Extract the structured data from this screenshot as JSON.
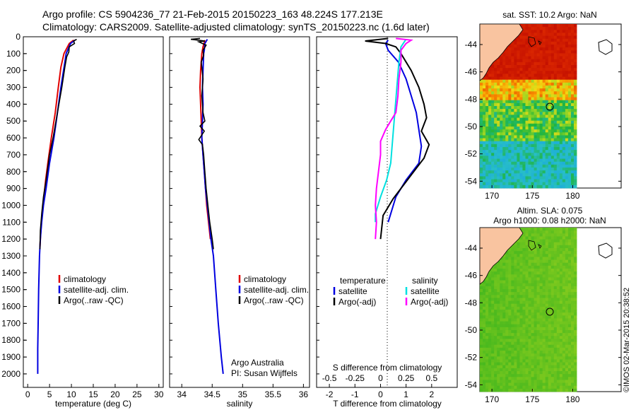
{
  "header": {
    "line1": "Argo profile: CS 5904236_77 21-Feb-2015 20150223_163 48.224S 177.213E",
    "line2": "Climatology: CARS2009. Satellite-adjusted climatology: synTS_20150223.nc (1.6d later)"
  },
  "colors": {
    "climatology": "#e00000",
    "satellite": "#0000e0",
    "argo": "#000000",
    "satellite_salinity": "#00e0e0",
    "argo_salinity": "#ff00ff"
  },
  "depth_axis": {
    "ticks": [
      0,
      100,
      200,
      300,
      400,
      500,
      600,
      700,
      800,
      900,
      1000,
      1100,
      1200,
      1300,
      1400,
      1500,
      1600,
      1700,
      1800,
      1900,
      2000
    ],
    "range": [
      0,
      2080
    ]
  },
  "credit": {
    "line1": "Argo Australia",
    "line2": "PI: Susan Wijffels"
  },
  "watermark": "©IMOS 02-Mar-2015 20:38:52",
  "chart_data": [
    {
      "type": "line",
      "xlabel": "temperature (deg C)",
      "ylim": [
        2080,
        0
      ],
      "xlim": [
        -1,
        31
      ],
      "xticks": [
        0,
        5,
        10,
        15,
        20,
        25,
        30
      ],
      "legend": {
        "position": "lower-right",
        "entries": [
          "climatology",
          "satellite-adj. clim.",
          "Argo(..raw -QC)"
        ]
      },
      "series": [
        {
          "name": "climatology",
          "points": [
            [
              10.5,
              20
            ],
            [
              9.5,
              40
            ],
            [
              8.3,
              100
            ],
            [
              7.6,
              180
            ],
            [
              7.0,
              300
            ],
            [
              6.3,
              450
            ],
            [
              5.4,
              600
            ],
            [
              4.6,
              750
            ],
            [
              4.1,
              850
            ],
            [
              3.7,
              950
            ],
            [
              3.3,
              1050
            ],
            [
              3.0,
              1150
            ],
            [
              2.8,
              1250
            ]
          ]
        },
        {
          "name": "satellite-adj. clim.",
          "points": [
            [
              10.8,
              20
            ],
            [
              9.8,
              40
            ],
            [
              8.8,
              100
            ],
            [
              8.5,
              150
            ],
            [
              7.6,
              300
            ],
            [
              6.8,
              450
            ],
            [
              6.0,
              600
            ],
            [
              5.0,
              750
            ],
            [
              4.2,
              900
            ],
            [
              3.6,
              1000
            ],
            [
              3.2,
              1100
            ],
            [
              2.9,
              1200
            ],
            [
              2.7,
              1300
            ],
            [
              2.5,
              1500
            ],
            [
              2.4,
              1700
            ],
            [
              2.3,
              1850
            ],
            [
              2.3,
              2000
            ]
          ]
        },
        {
          "name": "Argo(..raw -QC)",
          "points": [
            [
              11.2,
              15
            ],
            [
              10.5,
              25
            ],
            [
              10.7,
              40
            ],
            [
              9.5,
              60
            ],
            [
              9.4,
              90
            ],
            [
              8.9,
              120
            ],
            [
              8.5,
              180
            ],
            [
              7.8,
              300
            ],
            [
              6.8,
              450
            ],
            [
              5.8,
              600
            ],
            [
              5.0,
              700
            ],
            [
              4.2,
              850
            ],
            [
              3.6,
              950
            ],
            [
              3.2,
              1050
            ],
            [
              2.9,
              1150
            ],
            [
              2.8,
              1260
            ]
          ]
        }
      ]
    },
    {
      "type": "line",
      "xlabel": "salinity",
      "ylim": [
        2080,
        0
      ],
      "xlim": [
        33.8,
        36.1
      ],
      "xticks": [
        34,
        34.5,
        35,
        35.5,
        36
      ],
      "legend": {
        "position": "lower-right",
        "entries": [
          "climatology",
          "satellite-adj. clim.",
          "Argo(..raw -QC)"
        ]
      },
      "series": [
        {
          "name": "climatology",
          "points": [
            [
              34.38,
              20
            ],
            [
              34.35,
              60
            ],
            [
              34.33,
              100
            ],
            [
              34.31,
              200
            ],
            [
              34.3,
              300
            ],
            [
              34.31,
              400
            ],
            [
              34.32,
              500
            ],
            [
              34.33,
              600
            ],
            [
              34.35,
              700
            ],
            [
              34.37,
              800
            ],
            [
              34.39,
              900
            ],
            [
              34.41,
              1000
            ],
            [
              34.44,
              1100
            ],
            [
              34.47,
              1200
            ]
          ]
        },
        {
          "name": "satellite-adj. clim.",
          "points": [
            [
              34.42,
              15
            ],
            [
              34.38,
              40
            ],
            [
              34.37,
              80
            ],
            [
              34.36,
              100
            ],
            [
              34.35,
              200
            ],
            [
              34.34,
              300
            ],
            [
              34.35,
              400
            ],
            [
              34.34,
              500
            ],
            [
              34.33,
              600
            ],
            [
              34.35,
              700
            ],
            [
              34.37,
              800
            ],
            [
              34.39,
              900
            ],
            [
              34.42,
              1000
            ],
            [
              34.45,
              1100
            ],
            [
              34.48,
              1200
            ],
            [
              34.52,
              1300
            ],
            [
              34.56,
              1500
            ],
            [
              34.6,
              1700
            ],
            [
              34.65,
              1900
            ],
            [
              34.68,
              2000
            ]
          ]
        },
        {
          "name": "Argo(..raw -QC)",
          "points": [
            [
              34.3,
              10
            ],
            [
              34.15,
              15
            ],
            [
              34.38,
              25
            ],
            [
              34.28,
              30
            ],
            [
              34.4,
              50
            ],
            [
              34.35,
              80
            ],
            [
              34.36,
              110
            ],
            [
              34.32,
              150
            ],
            [
              34.35,
              250
            ],
            [
              34.33,
              350
            ],
            [
              34.35,
              450
            ],
            [
              34.38,
              500
            ],
            [
              34.3,
              530
            ],
            [
              34.37,
              560
            ],
            [
              34.28,
              610
            ],
            [
              34.34,
              640
            ],
            [
              34.36,
              700
            ],
            [
              34.38,
              800
            ],
            [
              34.4,
              900
            ],
            [
              34.43,
              1000
            ],
            [
              34.46,
              1100
            ],
            [
              34.5,
              1200
            ],
            [
              34.52,
              1260
            ]
          ]
        }
      ]
    },
    {
      "type": "line",
      "xlabel": "T difference from climatology",
      "xlabel_top": "S difference from climatology",
      "ylim": [
        2080,
        0
      ],
      "xlim": [
        -2.5,
        3.0
      ],
      "xticks": [
        -2,
        -1,
        0,
        1,
        2
      ],
      "xticks_top": [
        "-0.5",
        "-0.25",
        "0",
        "0.25",
        "0.5"
      ],
      "legend": {
        "position": "lower-center",
        "headers": [
          "temperature",
          "salinity"
        ],
        "entries": [
          "satellite",
          "Argo(-adj)",
          "satellite",
          "Argo(-adj)"
        ]
      },
      "series": [
        {
          "name": "satellite",
          "quantity": "temperature",
          "points": [
            [
              0.3,
              20
            ],
            [
              0.2,
              40
            ],
            [
              0.3,
              80
            ],
            [
              0.7,
              150
            ],
            [
              1.0,
              250
            ],
            [
              1.2,
              350
            ],
            [
              1.4,
              450
            ],
            [
              1.5,
              550
            ],
            [
              1.6,
              650
            ],
            [
              1.5,
              750
            ],
            [
              1.0,
              850
            ],
            [
              0.6,
              950
            ],
            [
              0.4,
              1050
            ],
            [
              0.3,
              1100
            ]
          ]
        },
        {
          "name": "Argo(-adj)",
          "quantity": "temperature",
          "points": [
            [
              0.3,
              10
            ],
            [
              -0.6,
              25
            ],
            [
              0.2,
              40
            ],
            [
              0.6,
              60
            ],
            [
              0.8,
              100
            ],
            [
              1.2,
              200
            ],
            [
              1.5,
              300
            ],
            [
              1.7,
              400
            ],
            [
              1.8,
              480
            ],
            [
              1.6,
              560
            ],
            [
              1.9,
              640
            ],
            [
              1.7,
              720
            ],
            [
              1.4,
              780
            ],
            [
              1.0,
              860
            ],
            [
              0.5,
              960
            ],
            [
              0.1,
              1060
            ],
            [
              0.0,
              1200
            ]
          ]
        },
        {
          "name": "satellite",
          "quantity": "salinity",
          "points": [
            [
              0.25,
              15
            ],
            [
              0.2,
              60
            ],
            [
              0.18,
              150
            ],
            [
              0.16,
              300
            ],
            [
              0.14,
              450
            ],
            [
              0.12,
              600
            ],
            [
              0.1,
              750
            ],
            [
              0.06,
              850
            ],
            [
              0.0,
              950
            ],
            [
              -0.05,
              1050
            ],
            [
              -0.05,
              1100
            ]
          ]
        },
        {
          "name": "Argo(-adj)",
          "quantity": "salinity",
          "points": [
            [
              0.15,
              10
            ],
            [
              0.3,
              20
            ],
            [
              0.25,
              40
            ],
            [
              0.2,
              80
            ],
            [
              0.2,
              150
            ],
            [
              0.18,
              250
            ],
            [
              0.17,
              350
            ],
            [
              0.15,
              450
            ],
            [
              0.1,
              500
            ],
            [
              0.05,
              550
            ],
            [
              0.0,
              620
            ],
            [
              0.0,
              700
            ],
            [
              -0.02,
              800
            ],
            [
              -0.04,
              900
            ],
            [
              -0.05,
              1000
            ],
            [
              -0.04,
              1100
            ],
            [
              -0.05,
              1200
            ]
          ]
        }
      ]
    },
    {
      "type": "heatmap",
      "title": "sat. SST: 10.2  Argo: NaN",
      "xticks": [
        170,
        175,
        180
      ],
      "yticks": [
        -44,
        -46,
        -48,
        -50,
        -52,
        -54
      ],
      "xlim": [
        168.5,
        186
      ],
      "ylim": [
        -54.5,
        -42.5
      ],
      "argo_position": [
        177.2,
        -48.2
      ]
    },
    {
      "type": "heatmap",
      "title": "Altim. SLA: 0.075",
      "subtitle": "Argo h1000: 0.08 h2000: NaN",
      "xticks": [
        170,
        175,
        180
      ],
      "yticks": [
        -44,
        -46,
        -48,
        -50,
        -52,
        -54
      ],
      "xlim": [
        168.5,
        186
      ],
      "ylim": [
        -54.5,
        -42.5
      ],
      "argo_position": [
        177.2,
        -48.2
      ]
    }
  ]
}
